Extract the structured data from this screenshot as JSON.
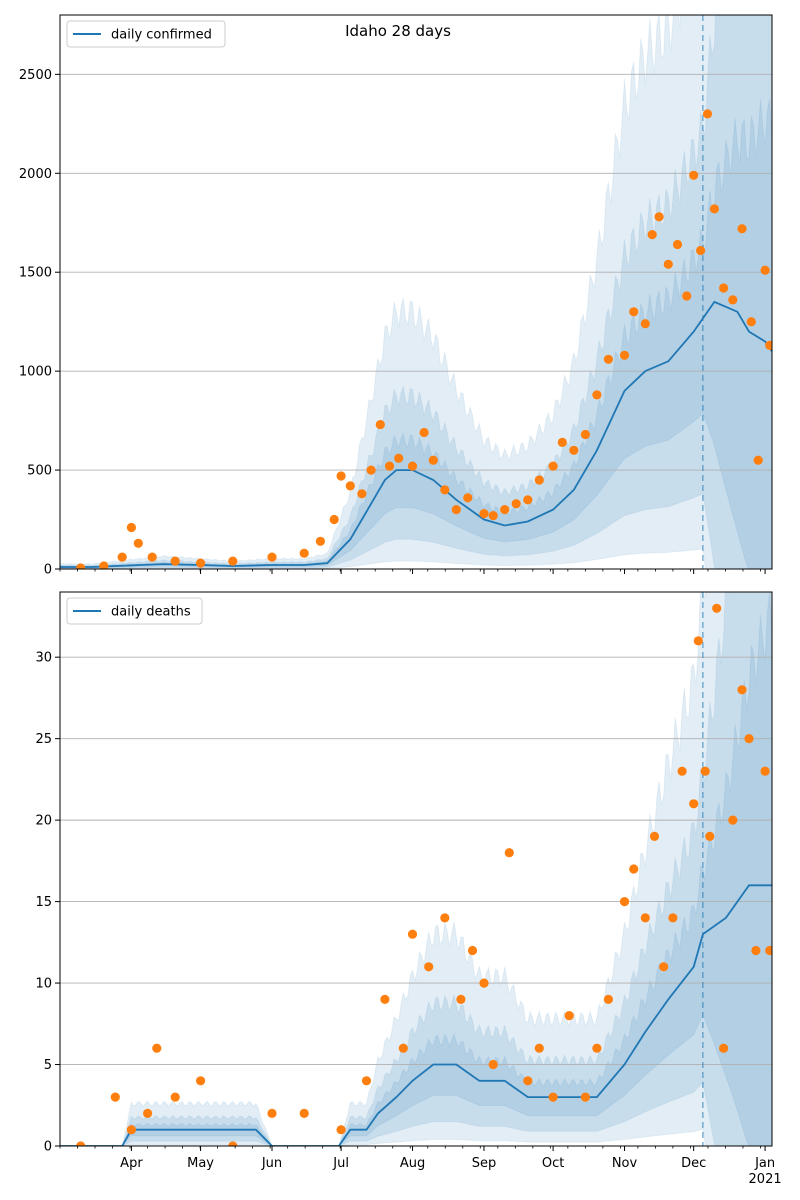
{
  "chart_data": [
    {
      "type": "line",
      "title": "Idaho 28 days",
      "legend": {
        "label": "daily confirmed",
        "placement": "top-left"
      },
      "x_range": [
        "2020-03-01",
        "2021-01-04"
      ],
      "ylim": [
        0,
        2800
      ],
      "yticks": [
        0,
        500,
        1000,
        1500,
        2000,
        2500
      ],
      "grid": "horizontal",
      "forecast_start": "2020-12-05",
      "series": [
        {
          "role": "model median",
          "color": "#1f77b4",
          "x": [
            "2020-03-01",
            "2020-03-15",
            "2020-03-25",
            "2020-04-05",
            "2020-04-15",
            "2020-05-01",
            "2020-05-15",
            "2020-06-01",
            "2020-06-15",
            "2020-06-25",
            "2020-07-05",
            "2020-07-10",
            "2020-07-15",
            "2020-07-20",
            "2020-07-25",
            "2020-08-01",
            "2020-08-10",
            "2020-08-20",
            "2020-09-01",
            "2020-09-10",
            "2020-09-20",
            "2020-10-01",
            "2020-10-10",
            "2020-10-20",
            "2020-11-01",
            "2020-11-10",
            "2020-11-20",
            "2020-12-01",
            "2020-12-10",
            "2020-12-20",
            "2020-12-25",
            "2021-01-01",
            "2021-01-04"
          ],
          "values": [
            10,
            10,
            15,
            20,
            25,
            20,
            15,
            20,
            20,
            30,
            150,
            250,
            350,
            450,
            500,
            500,
            450,
            350,
            250,
            220,
            240,
            300,
            400,
            600,
            900,
            1000,
            1050,
            1200,
            1350,
            1300,
            1200,
            1150,
            1100
          ]
        },
        {
          "role": "observed daily",
          "color": "#ff7f0e",
          "x": [
            "2020-03-10",
            "2020-03-20",
            "2020-03-28",
            "2020-04-01",
            "2020-04-04",
            "2020-04-10",
            "2020-04-20",
            "2020-05-01",
            "2020-05-15",
            "2020-06-01",
            "2020-06-15",
            "2020-06-22",
            "2020-06-28",
            "2020-07-01",
            "2020-07-05",
            "2020-07-10",
            "2020-07-14",
            "2020-07-18",
            "2020-07-22",
            "2020-07-26",
            "2020-08-01",
            "2020-08-06",
            "2020-08-10",
            "2020-08-15",
            "2020-08-20",
            "2020-08-25",
            "2020-09-01",
            "2020-09-05",
            "2020-09-10",
            "2020-09-15",
            "2020-09-20",
            "2020-09-25",
            "2020-10-01",
            "2020-10-05",
            "2020-10-10",
            "2020-10-15",
            "2020-10-20",
            "2020-10-25",
            "2020-11-01",
            "2020-11-05",
            "2020-11-10",
            "2020-11-13",
            "2020-11-16",
            "2020-11-20",
            "2020-11-24",
            "2020-11-28",
            "2020-12-01",
            "2020-12-04",
            "2020-12-07",
            "2020-12-10",
            "2020-12-14",
            "2020-12-18",
            "2020-12-22",
            "2020-12-26",
            "2020-12-29",
            "2021-01-01",
            "2021-01-03"
          ],
          "values": [
            5,
            15,
            60,
            210,
            130,
            60,
            40,
            30,
            40,
            60,
            80,
            140,
            250,
            470,
            420,
            380,
            500,
            730,
            520,
            560,
            520,
            690,
            550,
            400,
            300,
            360,
            280,
            270,
            300,
            330,
            350,
            450,
            520,
            640,
            600,
            680,
            880,
            1060,
            1080,
            1300,
            1240,
            1690,
            1780,
            1540,
            1640,
            1380,
            1990,
            1610,
            2300,
            1820,
            1420,
            1360,
            1720,
            1250,
            550,
            1510,
            1130
          ]
        }
      ]
    },
    {
      "type": "line",
      "legend": {
        "label": "daily deaths",
        "placement": "top-left"
      },
      "x_range": [
        "2020-03-01",
        "2021-01-04"
      ],
      "ylim": [
        0,
        34
      ],
      "yticks": [
        0,
        5,
        10,
        15,
        20,
        25,
        30
      ],
      "xticks": [
        "Apr",
        "May",
        "Jun",
        "Jul",
        "Aug",
        "Sep",
        "Oct",
        "Nov",
        "Dec",
        "Jan"
      ],
      "xtick_year": "2021",
      "grid": "horizontal",
      "forecast_start": "2020-12-05",
      "series": [
        {
          "role": "model median",
          "color": "#1f77b4",
          "x": [
            "2020-03-01",
            "2020-03-28",
            "2020-04-01",
            "2020-05-01",
            "2020-05-25",
            "2020-06-01",
            "2020-06-30",
            "2020-07-05",
            "2020-07-12",
            "2020-07-17",
            "2020-07-25",
            "2020-08-01",
            "2020-08-10",
            "2020-08-20",
            "2020-08-30",
            "2020-09-10",
            "2020-09-20",
            "2020-10-01",
            "2020-10-10",
            "2020-10-20",
            "2020-11-01",
            "2020-11-10",
            "2020-11-20",
            "2020-12-01",
            "2020-12-05",
            "2020-12-15",
            "2020-12-25",
            "2021-01-01",
            "2021-01-04"
          ],
          "values": [
            0,
            0,
            1,
            1,
            1,
            0,
            0,
            1,
            1,
            2,
            3,
            4,
            5,
            5,
            4,
            4,
            3,
            3,
            3,
            3,
            5,
            7,
            9,
            11,
            13,
            14,
            16,
            16,
            16
          ]
        },
        {
          "role": "observed daily",
          "color": "#ff7f0e",
          "x": [
            "2020-03-10",
            "2020-03-25",
            "2020-04-01",
            "2020-04-08",
            "2020-04-12",
            "2020-04-20",
            "2020-05-01",
            "2020-05-15",
            "2020-06-01",
            "2020-06-15",
            "2020-07-01",
            "2020-07-12",
            "2020-07-20",
            "2020-07-28",
            "2020-08-01",
            "2020-08-08",
            "2020-08-15",
            "2020-08-22",
            "2020-08-27",
            "2020-09-01",
            "2020-09-05",
            "2020-09-12",
            "2020-09-20",
            "2020-09-25",
            "2020-10-01",
            "2020-10-08",
            "2020-10-15",
            "2020-10-20",
            "2020-10-25",
            "2020-11-01",
            "2020-11-05",
            "2020-11-10",
            "2020-11-14",
            "2020-11-18",
            "2020-11-22",
            "2020-11-26",
            "2020-12-01",
            "2020-12-03",
            "2020-12-06",
            "2020-12-08",
            "2020-12-11",
            "2020-12-14",
            "2020-12-18",
            "2020-12-22",
            "2020-12-25",
            "2020-12-28",
            "2021-01-01",
            "2021-01-03"
          ],
          "values": [
            0,
            3,
            1,
            2,
            6,
            3,
            4,
            0,
            2,
            2,
            1,
            4,
            9,
            6,
            13,
            11,
            14,
            9,
            12,
            10,
            5,
            18,
            4,
            6,
            3,
            8,
            3,
            6,
            9,
            15,
            17,
            14,
            19,
            11,
            14,
            23,
            21,
            31,
            23,
            19,
            33,
            6,
            20,
            28,
            25,
            12,
            23,
            12
          ]
        }
      ]
    }
  ]
}
